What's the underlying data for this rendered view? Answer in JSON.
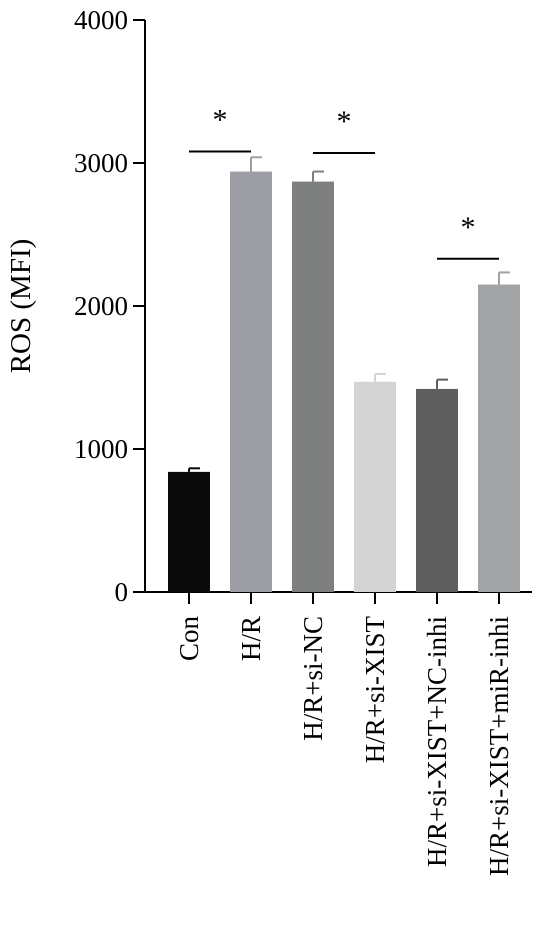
{
  "chart_data": {
    "type": "bar",
    "ylabel": "ROS (MFI)",
    "xlabel": "",
    "title": "",
    "ylim": [
      0,
      4000
    ],
    "yticks": [
      0,
      1000,
      2000,
      3000,
      4000
    ],
    "ytick_labels": [
      "0",
      "1000",
      "2000",
      "3000",
      "4000"
    ],
    "categories": [
      "Con",
      "H/R",
      "H/R+si-NC",
      "H/R+si-XIST",
      "H/R+si-XIST+NC-inhi",
      "H/R+si-XIST+miR-inhi"
    ],
    "values": [
      840,
      2940,
      2870,
      1470,
      1420,
      2150
    ],
    "errors": [
      25,
      100,
      70,
      55,
      65,
      85
    ],
    "bar_colors": [
      "#0a0a0a",
      "#9d9ea3",
      "#7e7f7f",
      "#d4d4d4",
      "#5f5f60",
      "#a2a3a5"
    ],
    "grid": false,
    "legend": "none",
    "significance": [
      {
        "from": 0,
        "to": 1,
        "label": "*",
        "level": 3080
      },
      {
        "from": 2,
        "to": 3,
        "label": "*",
        "level": 3070
      },
      {
        "from": 4,
        "to": 5,
        "label": "*",
        "level": 2330
      }
    ]
  }
}
